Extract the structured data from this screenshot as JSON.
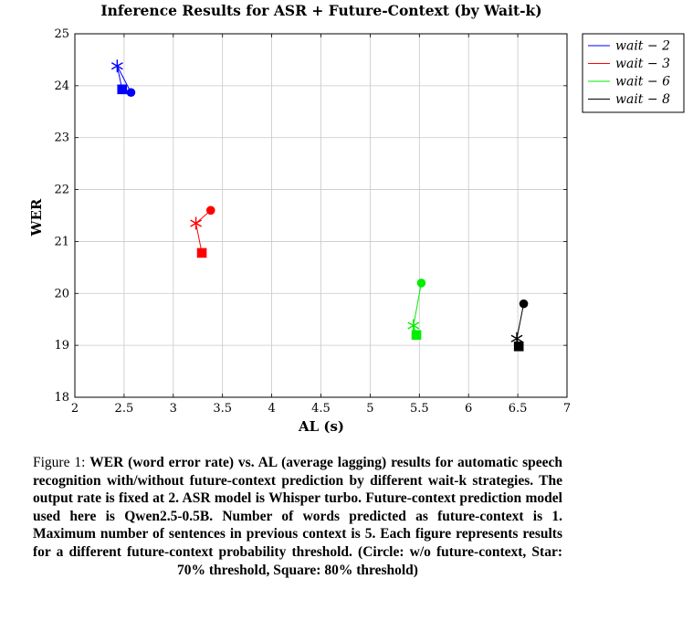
{
  "chart_data": {
    "type": "scatter",
    "title": "Inference Results for ASR + Future-Context (by Wait-k)",
    "xlabel": "AL (s)",
    "ylabel": "WER",
    "xlim": [
      2,
      7
    ],
    "ylim": [
      18,
      25
    ],
    "xticks": [
      "2",
      "2.5",
      "3",
      "3.5",
      "4",
      "4.5",
      "5",
      "5.5",
      "6",
      "6.5",
      "7"
    ],
    "yticks": [
      "18",
      "19",
      "20",
      "21",
      "22",
      "23",
      "24",
      "25"
    ],
    "grid": true,
    "legend_position": "outside-top-right",
    "series": [
      {
        "name": "wait − 2",
        "color": "#0000ff",
        "points": [
          {
            "marker": "circle",
            "x": 2.57,
            "y": 23.87
          },
          {
            "marker": "star",
            "x": 2.43,
            "y": 24.38
          },
          {
            "marker": "square",
            "x": 2.48,
            "y": 23.93
          }
        ]
      },
      {
        "name": "wait − 3",
        "color": "#ff0000",
        "points": [
          {
            "marker": "circle",
            "x": 3.38,
            "y": 21.6
          },
          {
            "marker": "star",
            "x": 3.23,
            "y": 21.35
          },
          {
            "marker": "square",
            "x": 3.29,
            "y": 20.78
          }
        ]
      },
      {
        "name": "wait − 6",
        "color": "#00ee00",
        "points": [
          {
            "marker": "circle",
            "x": 5.52,
            "y": 20.2
          },
          {
            "marker": "star",
            "x": 5.44,
            "y": 19.38
          },
          {
            "marker": "square",
            "x": 5.47,
            "y": 19.2
          }
        ]
      },
      {
        "name": "wait − 8",
        "color": "#000000",
        "points": [
          {
            "marker": "circle",
            "x": 6.56,
            "y": 19.8
          },
          {
            "marker": "star",
            "x": 6.49,
            "y": 19.13
          },
          {
            "marker": "square",
            "x": 6.51,
            "y": 18.98
          }
        ]
      }
    ]
  },
  "caption": {
    "label": "Figure 1:",
    "text": "WER (word error rate) vs. AL (average lagging) results for automatic speech recognition with/without future-context prediction by different wait-k strategies. The output rate is fixed at 2. ASR model is Whisper turbo. Future-context prediction model used here is Qwen2.5-0.5B. Number of words predicted as future-context is 1. Maximum number of sentences in previous context is 5. Each figure represents results for a different future-context probability threshold. (Circle: w/o future-context, Star: 70% threshold, Square: 80% threshold)"
  }
}
